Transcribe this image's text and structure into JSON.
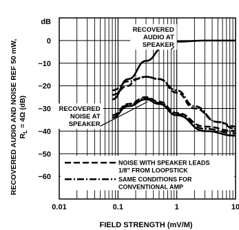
{
  "chart_data": {
    "type": "line",
    "xlabel": "FIELD STRENGTH (mV/M)",
    "ylabel_line1": "RECOVERED AUDIO AND NOISE REF 50 mW,",
    "ylabel_line2": "R",
    "ylabel_sub": "L",
    "ylabel_line2_rest": " = 4Ω (dB)",
    "y_unit": "dB",
    "x_scale": "log",
    "xlim": [
      0.01,
      10
    ],
    "ylim": [
      -70,
      10
    ],
    "x_ticks": [
      {
        "value": 0.01,
        "label": "0.01"
      },
      {
        "value": 0.1,
        "label": "0.1"
      },
      {
        "value": 1,
        "label": "1"
      },
      {
        "value": 10,
        "label": "10"
      }
    ],
    "y_ticks": [
      {
        "value": 0,
        "label": "0"
      },
      {
        "value": -10,
        "label": "−10"
      },
      {
        "value": -20,
        "label": "−20"
      },
      {
        "value": -30,
        "label": "−30"
      },
      {
        "value": -40,
        "label": "−40"
      },
      {
        "value": -50,
        "label": "−50"
      },
      {
        "value": -60,
        "label": "−60"
      }
    ],
    "grid": true,
    "series": [
      {
        "style": "solid",
        "points": [
          [
            0.08,
            -26
          ],
          [
            0.15,
            -17
          ],
          [
            0.3,
            -9
          ],
          [
            0.6,
            -3
          ],
          [
            1,
            -0.5
          ],
          [
            3,
            0
          ],
          [
            10,
            0
          ]
        ]
      },
      {
        "style": "dashed",
        "points": [
          [
            0.08,
            -24
          ],
          [
            0.15,
            -20
          ],
          [
            0.2,
            -17
          ],
          [
            0.3,
            -16
          ],
          [
            0.5,
            -17
          ],
          [
            1,
            -23
          ],
          [
            2,
            -30
          ],
          [
            5,
            -36
          ],
          [
            10,
            -38
          ]
        ]
      },
      {
        "style": "dashdot",
        "points": [
          [
            0.08,
            -22
          ],
          [
            0.15,
            -18
          ],
          [
            0.3,
            -16
          ],
          [
            0.5,
            -17
          ],
          [
            1,
            -22
          ],
          [
            2,
            -29
          ],
          [
            5,
            -36
          ],
          [
            10,
            -39
          ]
        ]
      },
      {
        "style": "solid",
        "points": [
          [
            0.08,
            -34
          ],
          [
            0.15,
            -29
          ],
          [
            0.3,
            -26
          ],
          [
            0.5,
            -28
          ],
          [
            1,
            -33
          ],
          [
            3,
            -40
          ],
          [
            10,
            -42
          ]
        ]
      },
      {
        "style": "dashed",
        "points": [
          [
            0.08,
            -33
          ],
          [
            0.15,
            -28
          ],
          [
            0.3,
            -25
          ],
          [
            0.5,
            -27
          ],
          [
            1,
            -32
          ],
          [
            3,
            -38
          ],
          [
            10,
            -40
          ]
        ]
      },
      {
        "style": "dashdot",
        "points": [
          [
            0.08,
            -33
          ],
          [
            0.15,
            -28.5
          ],
          [
            0.3,
            -25.5
          ],
          [
            0.5,
            -27.5
          ],
          [
            1,
            -32.5
          ],
          [
            3,
            -39
          ],
          [
            10,
            -41
          ]
        ]
      }
    ],
    "annotations": [
      {
        "lines": [
          "RECOVERED",
          "AUDIO AT",
          "SPEAKER"
        ],
        "align": "end",
        "anchor": [
          0.9,
          6
        ],
        "arrow_to": [
          0.8,
          -4
        ],
        "boxed": true
      },
      {
        "lines": [
          "RECOVERED",
          "NOISE AT",
          "SPEAKER"
        ],
        "align": "end",
        "anchor": [
          0.05,
          -29
        ],
        "arrow_to": [
          0.32,
          -27
        ],
        "boxed": true
      }
    ],
    "legend": {
      "placement": "bottom",
      "entries": [
        {
          "style": "dashed",
          "lines": [
            "NOISE WITH SPEAKER LEADS",
            "1/8\" FROM LOOPSTICK"
          ]
        },
        {
          "style": "dashdot",
          "lines": [
            "SAME CONDITIONS FOR",
            "CONVENTIONAL AMP"
          ]
        }
      ]
    }
  }
}
